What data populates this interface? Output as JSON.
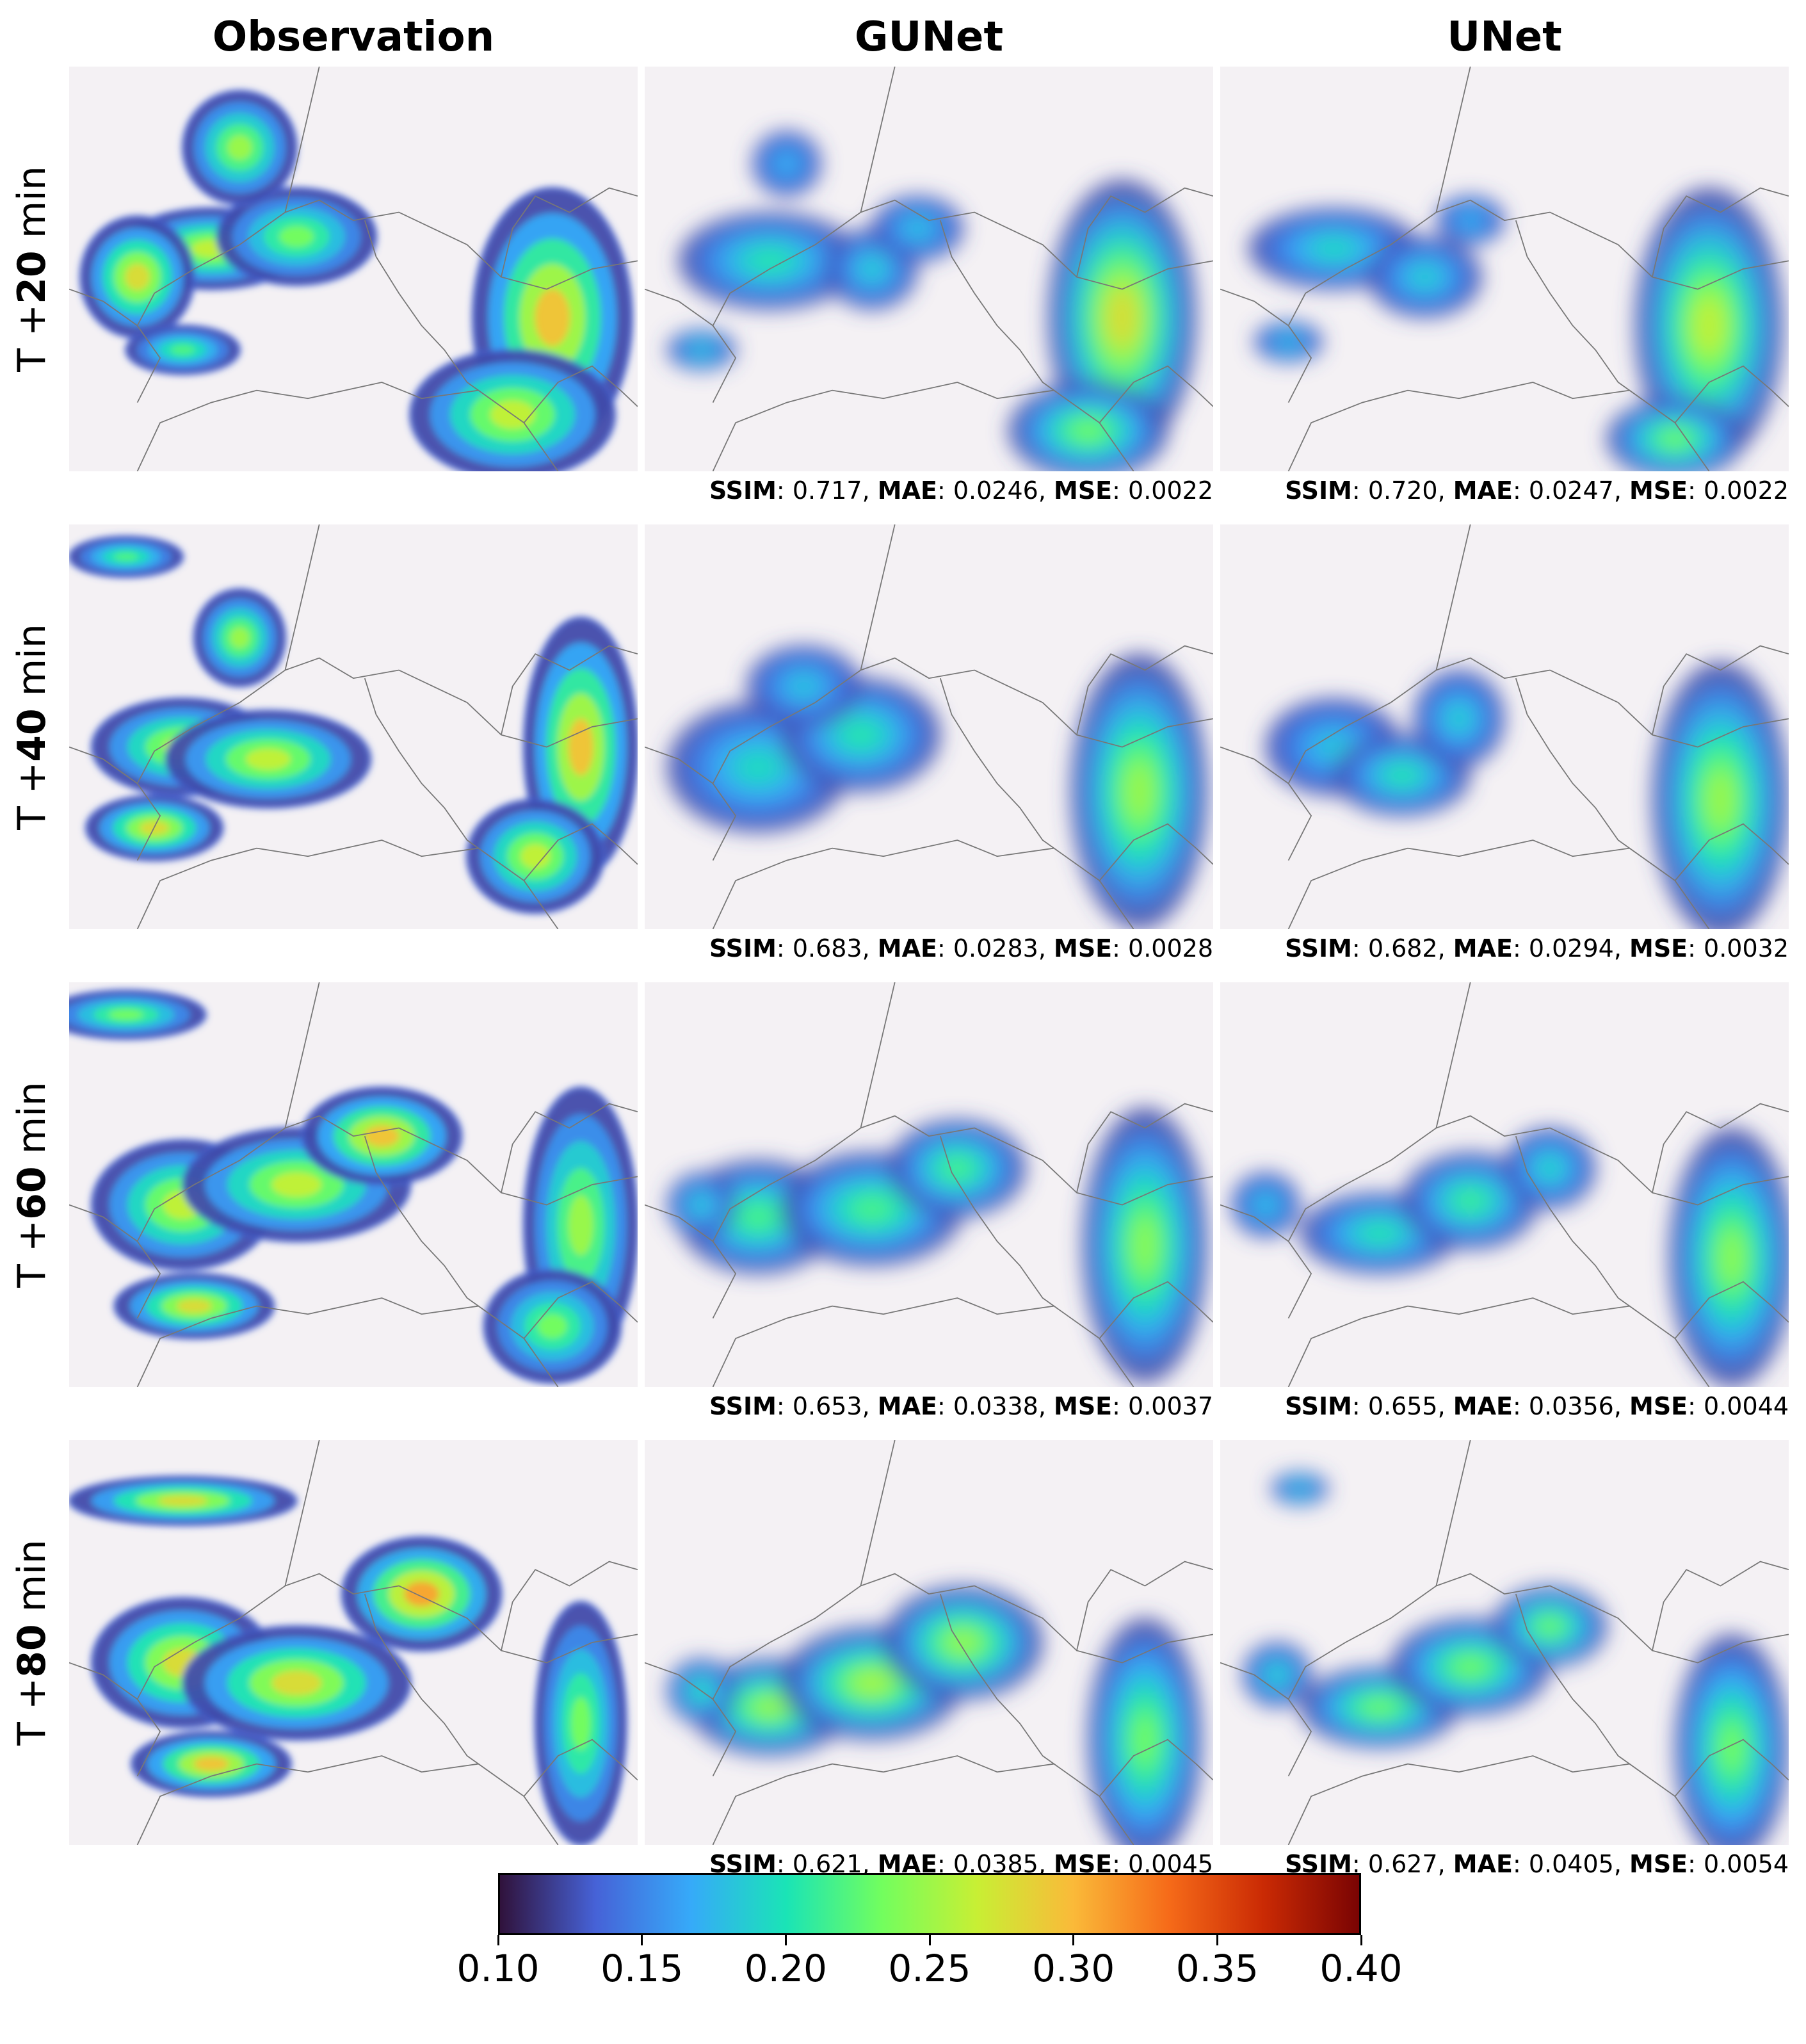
{
  "columns": [
    "Observation",
    "GUNet",
    "UNet"
  ],
  "rows": [
    {
      "prefix": "T +",
      "minutes": "20",
      "suffix": "min",
      "gunet": {
        "ssim": "0.717",
        "mae": "0.0246",
        "mse": "0.0022"
      },
      "unet": {
        "ssim": "0.720",
        "mae": "0.0247",
        "mse": "0.0022"
      }
    },
    {
      "prefix": "T +",
      "minutes": "40",
      "suffix": "min",
      "gunet": {
        "ssim": "0.683",
        "mae": "0.0283",
        "mse": "0.0028"
      },
      "unet": {
        "ssim": "0.682",
        "mae": "0.0294",
        "mse": "0.0032"
      }
    },
    {
      "prefix": "T +",
      "minutes": "60",
      "suffix": "min",
      "gunet": {
        "ssim": "0.653",
        "mae": "0.0338",
        "mse": "0.0037"
      },
      "unet": {
        "ssim": "0.655",
        "mae": "0.0356",
        "mse": "0.0044"
      }
    },
    {
      "prefix": "T +",
      "minutes": "80",
      "suffix": "min",
      "gunet": {
        "ssim": "0.621",
        "mae": "0.0385",
        "mse": "0.0045"
      },
      "unet": {
        "ssim": "0.627",
        "mae": "0.0405",
        "mse": "0.0054"
      }
    }
  ],
  "metric_labels": {
    "ssim": "SSIM",
    "mae": "MAE",
    "mse": "MSE"
  },
  "chart_data": {
    "type": "heatmap",
    "title": "",
    "grid": false,
    "colorbar": {
      "orientation": "horizontal",
      "placement": "bottom",
      "range": [
        0.1,
        0.4
      ],
      "ticks": [
        "0.10",
        "0.15",
        "0.20",
        "0.25",
        "0.30",
        "0.35",
        "0.40"
      ],
      "colormap": "turbo",
      "colors": [
        "#30123b",
        "#4662d7",
        "#36aaf9",
        "#1ae4b6",
        "#72fe5e",
        "#c8ef34",
        "#faba39",
        "#f66b19",
        "#ca2a04",
        "#7a0403"
      ]
    },
    "background_color": "#f4f1f4",
    "border_color": "#777777"
  }
}
